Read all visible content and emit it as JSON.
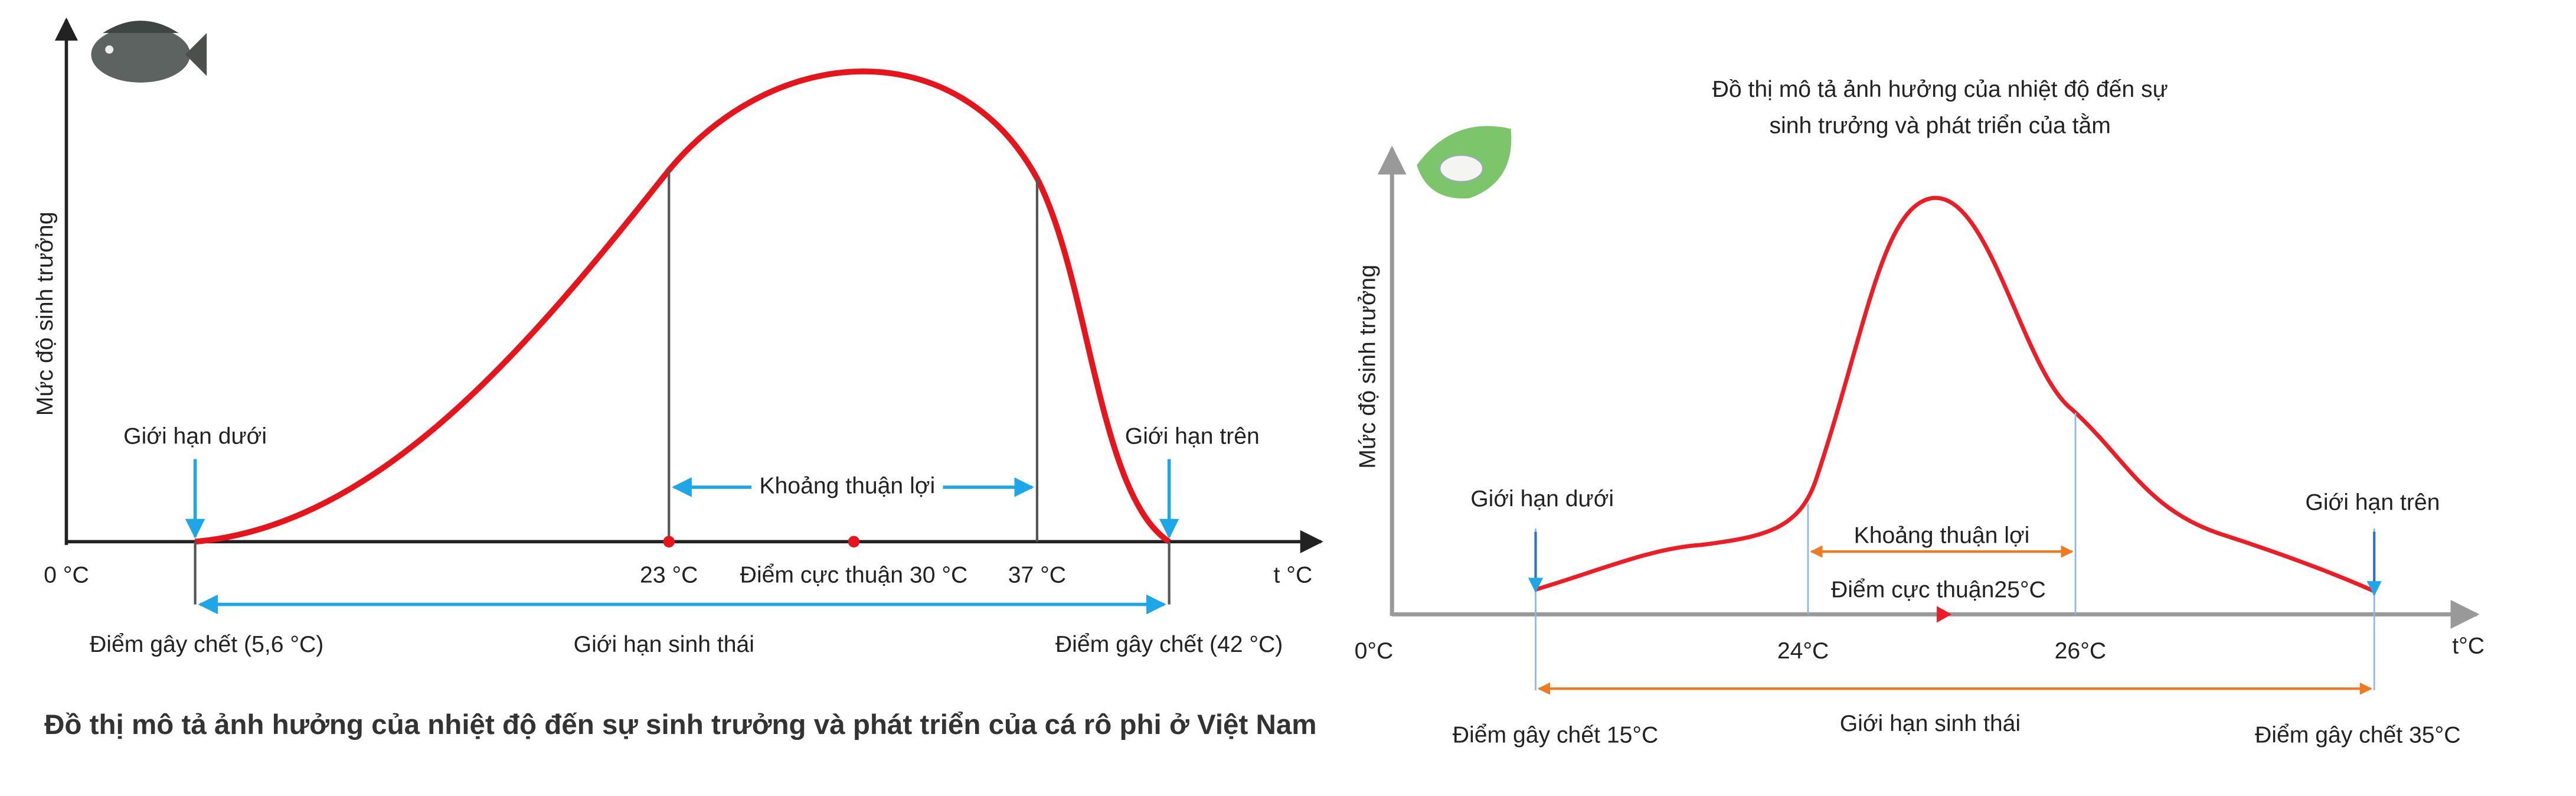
{
  "left": {
    "caption": "Đồ thị mô tả ảnh hưởng của nhiệt độ đến sự sinh trưởng và phát triển của cá rô phi ở Việt Nam",
    "y_axis_label": "Mức độ sinh trưởng",
    "x_axis_label": "t °C",
    "origin": "0 °C",
    "lower_limit": "Giới hạn dưới",
    "upper_limit": "Giới hạn trên",
    "favorable_range": "Khoảng thuận lợi",
    "low_favorable": "23 °C",
    "optimum": "Điểm cực thuận 30 °C",
    "high_favorable": "37 °C",
    "lethal_low": "Điểm gây chết (5,6 °C)",
    "ecological_limit": "Giới hạn sinh thái",
    "lethal_high": "Điểm gây chết (42 °C)"
  },
  "right": {
    "title_line1": "Đồ thị mô tả ảnh hưởng của nhiệt độ đến sự",
    "title_line2": "sinh trưởng và phát triển của tằm",
    "y_axis_label": "Mức độ sinh trưởng",
    "x_axis_label": "t°C",
    "origin": "0°C",
    "lower_limit": "Giới hạn dưới",
    "upper_limit": "Giới hạn trên",
    "favorable_range": "Khoảng thuận lợi",
    "optimum": "Điểm cực thuận25°C",
    "low_favorable": "24°C",
    "high_favorable": "26°C",
    "lethal_low": "Điểm gây chết 15°C",
    "ecological_limit": "Giới hạn sinh thái",
    "lethal_high": "Điểm gây chết 35°C"
  }
}
